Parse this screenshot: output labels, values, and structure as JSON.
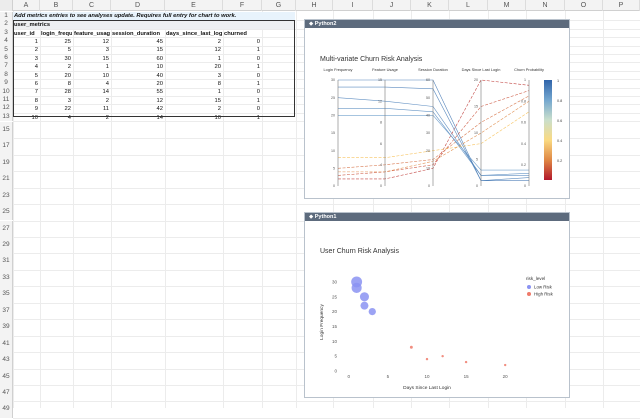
{
  "columns": [
    "A",
    "B",
    "C",
    "D",
    "E",
    "F",
    "G",
    "H",
    "I",
    "J",
    "K",
    "L",
    "M",
    "N",
    "O",
    "P"
  ],
  "rows": [
    "1",
    "2",
    "3",
    "4",
    "5",
    "6",
    "7",
    "8",
    "9",
    "10",
    "11",
    "12",
    "13",
    "15",
    "17",
    "19",
    "21",
    "23",
    "25",
    "27",
    "29",
    "31",
    "33",
    "35",
    "37",
    "39",
    "41",
    "43",
    "45",
    "47",
    "49"
  ],
  "note": "Add metrics entries to see analyses update. Requires full entry for chart to work.",
  "table_name": "user_metrics",
  "table": {
    "headers": [
      "user_id",
      "login_frequency",
      "feature_usage",
      "session_duration",
      "days_since_last_login",
      "churned"
    ],
    "rows": [
      [
        "1",
        "25",
        "12",
        "45",
        "2",
        "0"
      ],
      [
        "2",
        "5",
        "3",
        "15",
        "12",
        "1"
      ],
      [
        "3",
        "30",
        "15",
        "60",
        "1",
        "0"
      ],
      [
        "4",
        "2",
        "1",
        "10",
        "20",
        "1"
      ],
      [
        "5",
        "20",
        "10",
        "40",
        "3",
        "0"
      ],
      [
        "6",
        "8",
        "4",
        "20",
        "8",
        "1"
      ],
      [
        "7",
        "28",
        "14",
        "55",
        "1",
        "0"
      ],
      [
        "8",
        "3",
        "2",
        "12",
        "15",
        "1"
      ],
      [
        "9",
        "22",
        "11",
        "42",
        "2",
        "0"
      ],
      [
        "10",
        "4",
        "2",
        "14",
        "10",
        "1"
      ]
    ]
  },
  "panels": {
    "python2": "Python2",
    "python1": "Python1"
  },
  "chart_data": [
    {
      "type": "parallel_coordinates",
      "title": "Multi-variate Churn Risk Analysis",
      "dimensions": [
        {
          "label": "Login Frequency",
          "range": [
            0,
            30
          ],
          "ticks": [
            "30",
            "25",
            "20",
            "15",
            "10",
            "5",
            "0"
          ]
        },
        {
          "label": "Feature Usage",
          "range": [
            0,
            15
          ],
          "ticks": [
            "15",
            "12",
            "8",
            "6",
            "4",
            "0"
          ]
        },
        {
          "label": "Session Duration",
          "range": [
            0,
            60
          ],
          "ticks": [
            "60",
            "50",
            "40",
            "30",
            "20",
            "10",
            "0"
          ]
        },
        {
          "label": "Days Since Last Login",
          "range": [
            0,
            20
          ],
          "ticks": [
            "20",
            "15",
            "10",
            "5",
            "0"
          ]
        },
        {
          "label": "Churn Probability",
          "range": [
            0,
            1
          ],
          "ticks": [
            "1",
            "0.8",
            "0.6",
            "0.4",
            "0.2",
            "0"
          ]
        }
      ],
      "lines": [
        {
          "values": [
            25,
            12,
            45,
            2,
            0.1
          ]
        },
        {
          "values": [
            5,
            3,
            15,
            12,
            0.85
          ]
        },
        {
          "values": [
            30,
            15,
            60,
            1,
            0.05
          ]
        },
        {
          "values": [
            2,
            1,
            10,
            20,
            0.95
          ]
        },
        {
          "values": [
            20,
            10,
            40,
            3,
            0.15
          ]
        },
        {
          "values": [
            8,
            4,
            20,
            8,
            0.7
          ]
        },
        {
          "values": [
            28,
            14,
            55,
            1,
            0.08
          ]
        },
        {
          "values": [
            3,
            2,
            12,
            15,
            0.9
          ]
        },
        {
          "values": [
            22,
            11,
            42,
            2,
            0.12
          ]
        },
        {
          "values": [
            4,
            2,
            14,
            10,
            0.8
          ]
        }
      ],
      "colorbar": {
        "ticks": [
          "1",
          "0.8",
          "0.6",
          "0.4",
          "0.2"
        ]
      }
    },
    {
      "type": "scatter",
      "title": "User Churn Risk Analysis",
      "xlabel": "Days Since Last Login",
      "ylabel": "Login Frequency",
      "xlim": [
        -1,
        21
      ],
      "ylim": [
        0,
        33
      ],
      "xticks": [
        "0",
        "5",
        "10",
        "15",
        "20"
      ],
      "yticks": [
        "0",
        "5",
        "10",
        "15",
        "20",
        "25",
        "30"
      ],
      "legend_title": "risk_level",
      "series": [
        {
          "name": "Low Risk",
          "color": "#8b93f2",
          "points": [
            [
              2,
              25
            ],
            [
              1,
              30
            ],
            [
              3,
              20
            ],
            [
              1,
              28
            ],
            [
              2,
              22
            ]
          ]
        },
        {
          "name": "High Risk",
          "color": "#ef7a6a",
          "points": [
            [
              12,
              5
            ],
            [
              20,
              2
            ],
            [
              8,
              8
            ],
            [
              15,
              3
            ],
            [
              10,
              4
            ]
          ]
        }
      ]
    }
  ]
}
